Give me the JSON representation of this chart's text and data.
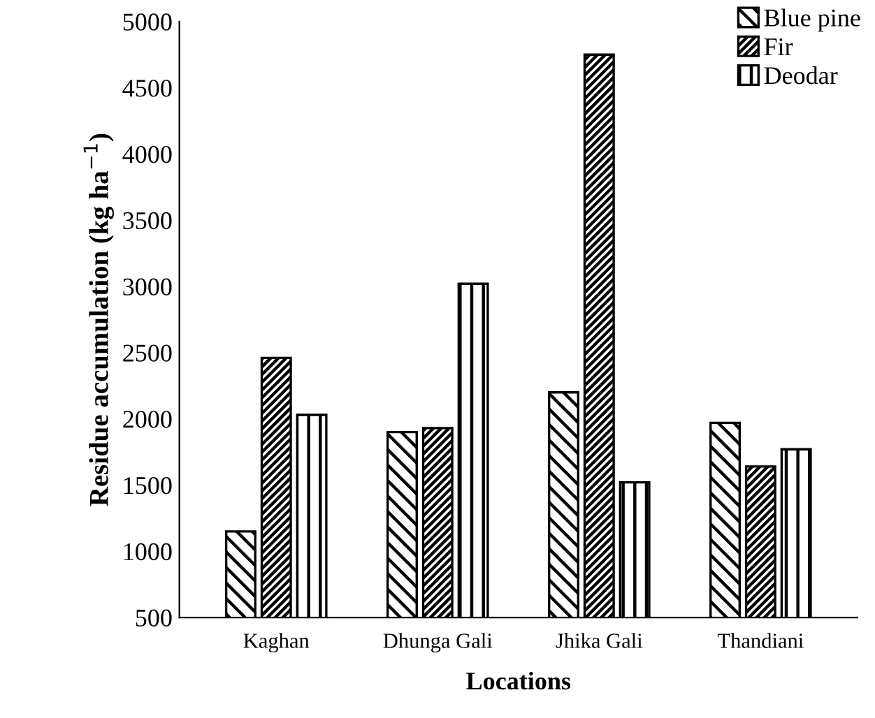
{
  "chart_data": {
    "type": "bar",
    "xlabel": "Locations",
    "ylabel": "Residue accumulation (kg ha$^{−1}$)",
    "categories": [
      "Kaghan",
      "Dhunga Gali",
      "Jhika Gali",
      "Thandiani"
    ],
    "series": [
      {
        "name": "Blue pine",
        "color": "#000000",
        "values": [
          1150,
          1900,
          2200,
          1970
        ]
      },
      {
        "name": "Fir",
        "color": "#000000",
        "values": [
          2460,
          1930,
          4750,
          1640
        ]
      },
      {
        "name": "Deodar",
        "color": "#000000",
        "values": [
          2030,
          3020,
          1520,
          1770
        ]
      }
    ],
    "ylim": [
      500,
      5000
    ],
    "yticks": [
      500,
      1000,
      1500,
      2000,
      2500,
      3000,
      3500,
      4000,
      4500,
      5000
    ],
    "grid": false,
    "legend": "top right"
  }
}
